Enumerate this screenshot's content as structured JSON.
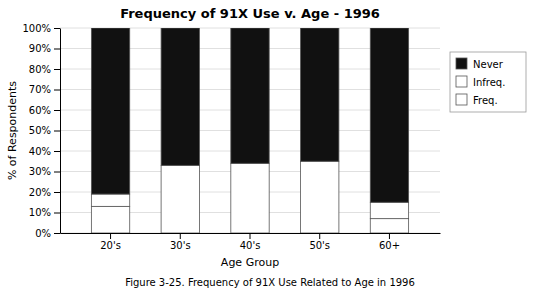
{
  "chart_data": {
    "type": "bar",
    "stacked": true,
    "title": "Frequency of 91X Use v. Age - 1996",
    "caption": "Figure 3-25. Frequency of 91X Use Related to Age in 1996",
    "xlabel": "Age Group",
    "ylabel": "% of Respondents",
    "categories": [
      "20's",
      "30's",
      "40's",
      "50's",
      "60+"
    ],
    "series": [
      {
        "name": "Freq.",
        "color": "#ffffff",
        "values": [
          13,
          0,
          0,
          0,
          7
        ]
      },
      {
        "name": "Infreq.",
        "color": "#ffffff",
        "values": [
          6,
          33,
          34,
          35,
          8
        ]
      },
      {
        "name": "Never",
        "color": "#111111",
        "values": [
          81,
          67,
          66,
          65,
          85
        ]
      }
    ],
    "ylim": [
      0,
      100
    ],
    "yticks": [
      {
        "value": 0,
        "label": "0%"
      },
      {
        "value": 10,
        "label": "10%"
      },
      {
        "value": 20,
        "label": "20%"
      },
      {
        "value": 30,
        "label": "30%"
      },
      {
        "value": 40,
        "label": "40%"
      },
      {
        "value": 50,
        "label": "50%"
      },
      {
        "value": 60,
        "label": "60%"
      },
      {
        "value": 70,
        "label": "70%"
      },
      {
        "value": 80,
        "label": "80%"
      },
      {
        "value": 90,
        "label": "90%"
      },
      {
        "value": 100,
        "label": "100%"
      }
    ],
    "grid": true,
    "legend": "right"
  }
}
